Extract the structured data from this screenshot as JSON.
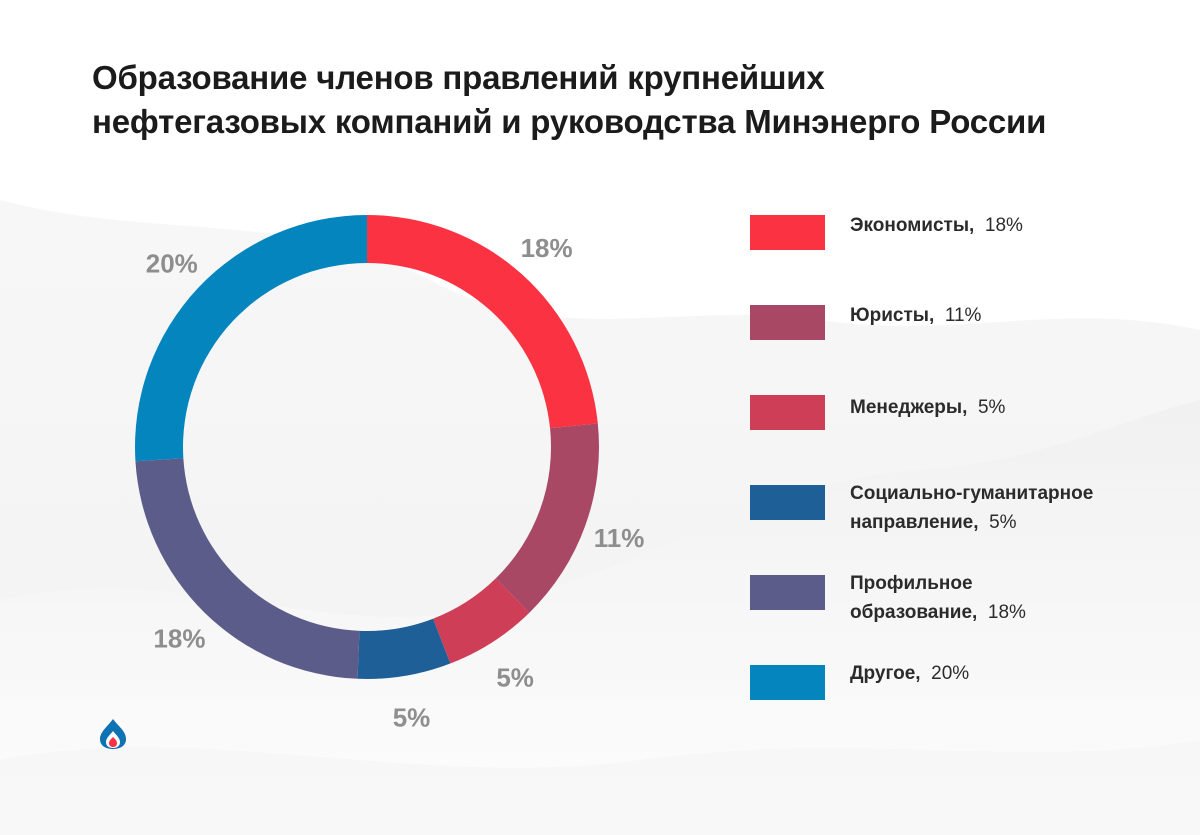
{
  "title": {
    "line1": "Образование членов правлений крупнейших",
    "line2": "нефтегазовых компаний и руководства Минэнерго России"
  },
  "colors": {
    "economists": "#fb3242",
    "lawyers": "#a84865",
    "managers": "#cf3e57",
    "social": "#1e5f98",
    "profile": "#5c5c8a",
    "other": "#0585bd",
    "label": "#8e8e8e"
  },
  "chart_data": {
    "type": "pie",
    "donut": true,
    "title": "Образование членов правлений крупнейших нефтегазовых компаний и руководства Минэнерго России",
    "legend_position": "right",
    "slices": [
      {
        "name": "Экономисты",
        "value": 18,
        "label": "18%",
        "color": "#fb3242"
      },
      {
        "name": "Юристы",
        "value": 11,
        "label": "11%",
        "color": "#a84865"
      },
      {
        "name": "Менеджеры",
        "value": 5,
        "label": "5%",
        "color": "#cf3e57"
      },
      {
        "name": "Социально-гуманитарное направление",
        "value": 5,
        "label": "5%",
        "color": "#1e5f98"
      },
      {
        "name": "Профильное образование",
        "value": 18,
        "label": "18%",
        "color": "#5c5c8a"
      },
      {
        "name": "Другое",
        "value": 20,
        "label": "20%",
        "color": "#0585bd"
      }
    ]
  },
  "legend": [
    {
      "line1": "Экономисты,",
      "pct": "18%",
      "line2": "",
      "color": "#fb3242"
    },
    {
      "line1": "Юристы,",
      "pct": "11%",
      "line2": "",
      "color": "#a84865"
    },
    {
      "line1": "Менеджеры,",
      "pct": "5%",
      "line2": "",
      "color": "#cf3e57"
    },
    {
      "line1": "Социально-гуманитарное",
      "pct": "5%",
      "line2": "направление,",
      "color": "#1e5f98"
    },
    {
      "line1": "Профильное",
      "pct": "18%",
      "line2": "образование,",
      "color": "#5c5c8a"
    },
    {
      "line1": "Другое,",
      "pct": "20%",
      "line2": "",
      "color": "#0585bd"
    }
  ],
  "logo": {
    "icon": "flame-logo-icon"
  }
}
